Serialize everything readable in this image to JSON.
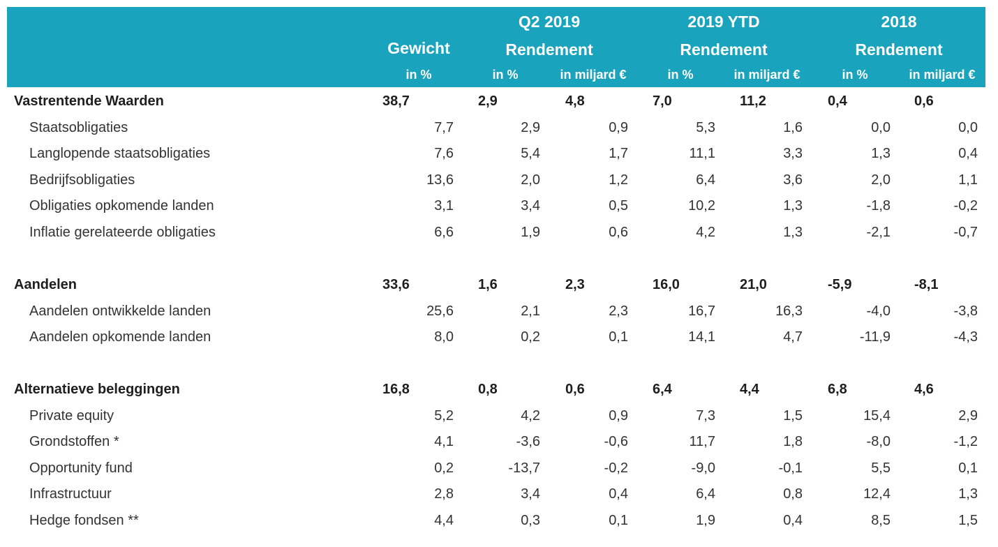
{
  "header": {
    "gewicht": {
      "title": "Gewicht",
      "unit": "in %"
    },
    "groups": [
      {
        "period": "Q2 2019",
        "title": "Rendement",
        "units": [
          "in %",
          "in miljard €"
        ]
      },
      {
        "period": "2019 YTD",
        "title": "Rendement",
        "units": [
          "in %",
          "in miljard €"
        ]
      },
      {
        "period": "2018",
        "title": "Rendement",
        "units": [
          "in %",
          "in miljard €"
        ]
      }
    ]
  },
  "sections": [
    {
      "label": "Vastrentende Waarden",
      "values": [
        "38,7",
        "2,9",
        "4,8",
        "7,0",
        "11,2",
        "0,4",
        "0,6"
      ],
      "rows": [
        {
          "label": "Staatsobligaties",
          "values": [
            "7,7",
            "2,9",
            "0,9",
            "5,3",
            "1,6",
            "0,0",
            "0,0"
          ]
        },
        {
          "label": "Langlopende staatsobligaties",
          "values": [
            "7,6",
            "5,4",
            "1,7",
            "11,1",
            "3,3",
            "1,3",
            "0,4"
          ]
        },
        {
          "label": "Bedrijfsobligaties",
          "values": [
            "13,6",
            "2,0",
            "1,2",
            "6,4",
            "3,6",
            "2,0",
            "1,1"
          ]
        },
        {
          "label": "Obligaties opkomende landen",
          "values": [
            "3,1",
            "3,4",
            "0,5",
            "10,2",
            "1,3",
            "-1,8",
            "-0,2"
          ]
        },
        {
          "label": "Inflatie gerelateerde obligaties",
          "values": [
            "6,6",
            "1,9",
            "0,6",
            "4,2",
            "1,3",
            "-2,1",
            "-0,7"
          ]
        }
      ]
    },
    {
      "label": "Aandelen",
      "values": [
        "33,6",
        "1,6",
        "2,3",
        "16,0",
        "21,0",
        "-5,9",
        "-8,1"
      ],
      "rows": [
        {
          "label": "Aandelen ontwikkelde landen",
          "values": [
            "25,6",
            "2,1",
            "2,3",
            "16,7",
            "16,3",
            "-4,0",
            "-3,8"
          ]
        },
        {
          "label": "Aandelen opkomende landen",
          "values": [
            "8,0",
            "0,2",
            "0,1",
            "14,1",
            "4,7",
            "-11,9",
            "-4,3"
          ]
        }
      ]
    },
    {
      "label": "Alternatieve beleggingen",
      "values": [
        "16,8",
        "0,8",
        "0,6",
        "6,4",
        "4,4",
        "6,8",
        "4,6"
      ],
      "rows": [
        {
          "label": "Private equity",
          "values": [
            "5,2",
            "4,2",
            "0,9",
            "7,3",
            "1,5",
            "15,4",
            "2,9"
          ]
        },
        {
          "label": "Grondstoffen *",
          "values": [
            "4,1",
            "-3,6",
            "-0,6",
            "11,7",
            "1,8",
            "-8,0",
            "-1,2"
          ]
        },
        {
          "label": "Opportunity fund",
          "values": [
            "0,2",
            "-13,7",
            "-0,2",
            "-9,0",
            "-0,1",
            "5,5",
            "0,1"
          ]
        },
        {
          "label": "Infrastructuur",
          "values": [
            "2,8",
            "3,4",
            "0,4",
            "6,4",
            "0,8",
            "12,4",
            "1,3"
          ]
        },
        {
          "label": "Hedge fondsen **",
          "values": [
            "4,4",
            "0,3",
            "0,1",
            "1,9",
            "0,4",
            "8,5",
            "1,5"
          ]
        }
      ]
    }
  ]
}
